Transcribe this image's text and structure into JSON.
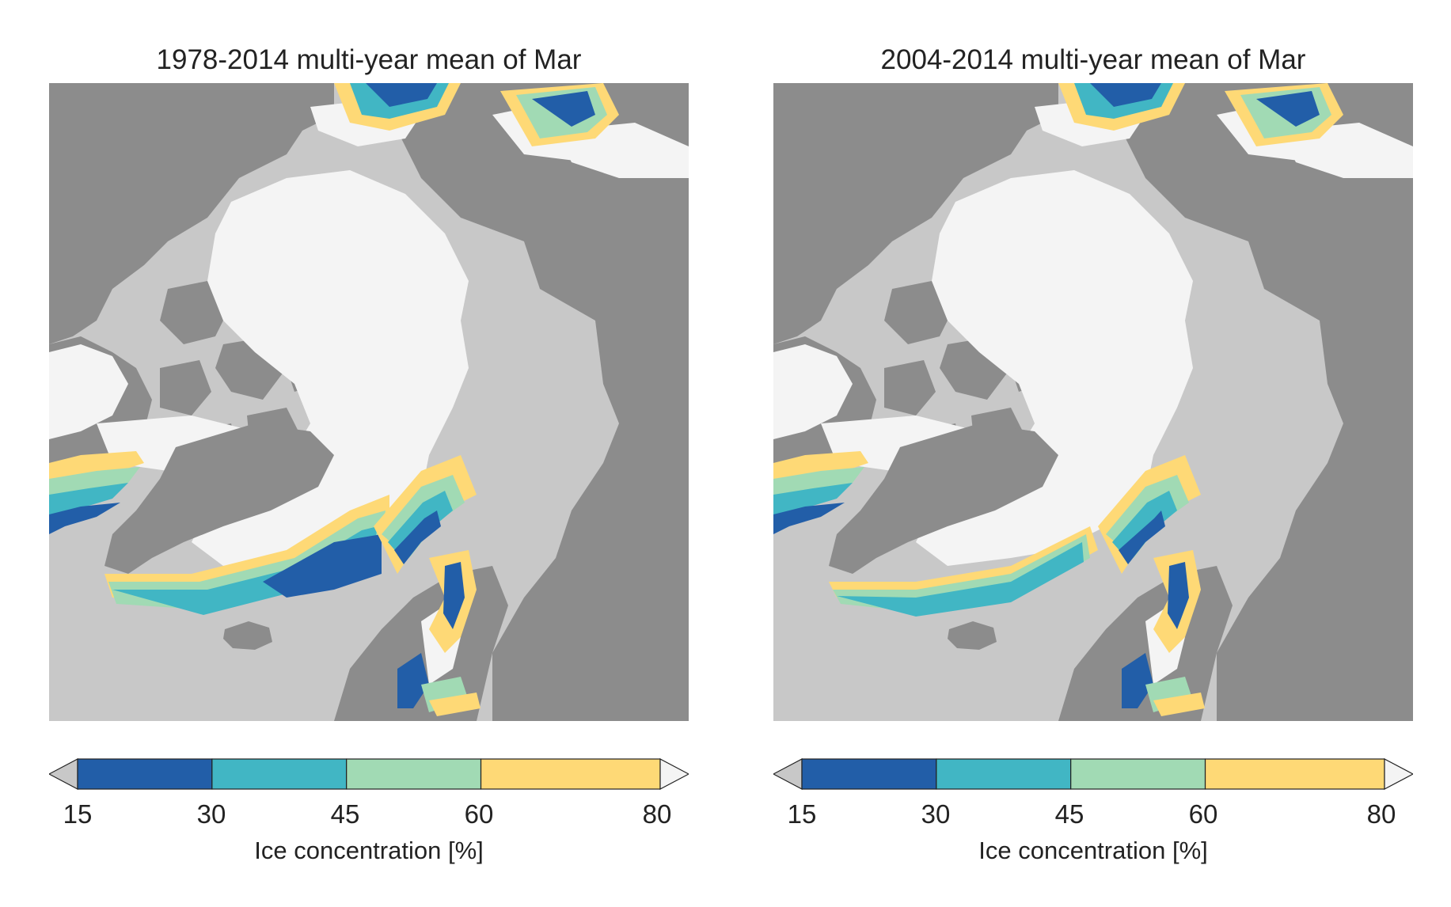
{
  "panels": [
    {
      "title": "1978-2014 multi-year mean of Mar",
      "map_variant": "long-term"
    },
    {
      "title": "2004-2014 multi-year mean of Mar",
      "map_variant": "recent"
    }
  ],
  "colorbar": {
    "label": "Ice concentration [%]",
    "ticks": [
      "15",
      "30",
      "45",
      "60",
      "80"
    ],
    "bins": [
      {
        "from": 15,
        "to": 30,
        "color": "#225ea8"
      },
      {
        "from": 30,
        "to": 45,
        "color": "#41b6c4"
      },
      {
        "from": 45,
        "to": 60,
        "color": "#a1dab4"
      },
      {
        "from": 60,
        "to": 80,
        "color": "#fed976"
      }
    ],
    "under_color": "#c8c8c8",
    "over_color": "#f4f4f4"
  },
  "map_colors": {
    "ocean": "#c8c8c8",
    "land": "#8c8c8c",
    "ice_pack": "#f4f4f4",
    "borders": "#bdbdbd"
  }
}
